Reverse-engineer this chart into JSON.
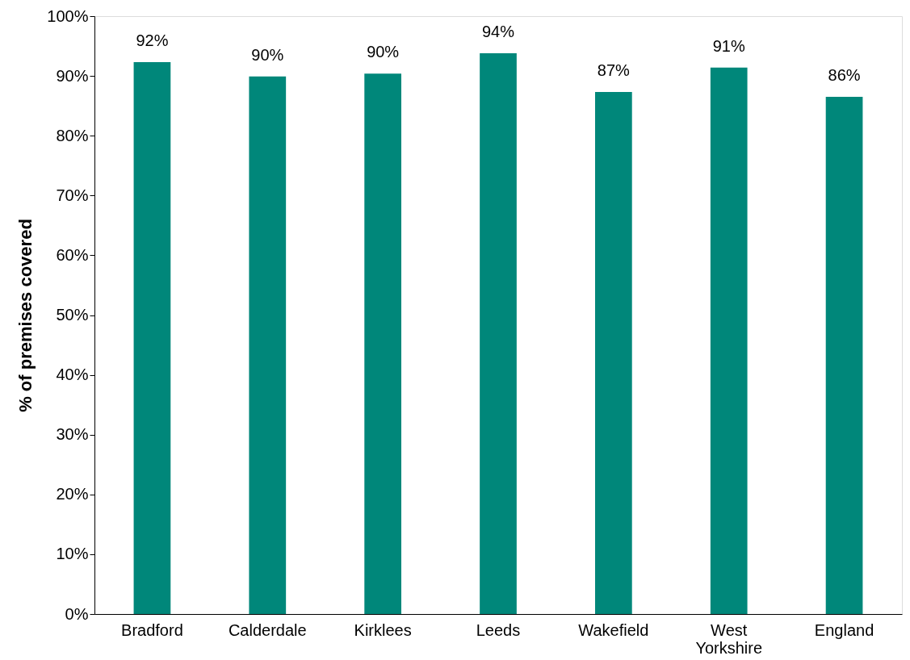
{
  "chart_data": {
    "type": "bar",
    "ylabel": "% of premises covered",
    "categories": [
      "Bradford",
      "Calderdale",
      "Kirklees",
      "Leeds",
      "Wakefield",
      "West Yorkshire",
      "England"
    ],
    "values": [
      92.3,
      89.9,
      90.4,
      93.8,
      87.3,
      91.4,
      86.5
    ],
    "value_labels": [
      "92%",
      "90%",
      "90%",
      "94%",
      "87%",
      "91%",
      "86%"
    ],
    "color": "#00877a",
    "ylim": [
      0,
      100
    ],
    "yticks": [
      {
        "value": 0,
        "label": "0%"
      },
      {
        "value": 10,
        "label": "10%"
      },
      {
        "value": 20,
        "label": "20%"
      },
      {
        "value": 30,
        "label": "30%"
      },
      {
        "value": 40,
        "label": "40%"
      },
      {
        "value": 50,
        "label": "50%"
      },
      {
        "value": 60,
        "label": "60%"
      },
      {
        "value": 70,
        "label": "70%"
      },
      {
        "value": 80,
        "label": "80%"
      },
      {
        "value": 90,
        "label": "90%"
      },
      {
        "value": 100,
        "label": "100%"
      }
    ],
    "grid": false
  }
}
